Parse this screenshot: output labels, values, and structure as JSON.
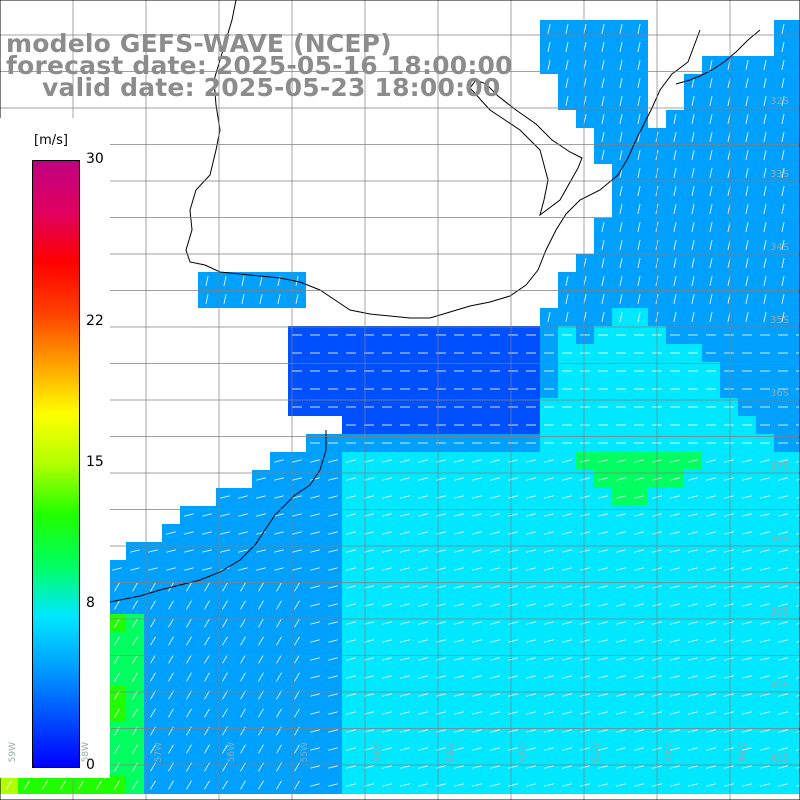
{
  "header": {
    "model": "modelo GEFS-WAVE (NCEP)",
    "forecast": "forecast date: 2025-05-16 18:00:00",
    "valid": "valid date: 2025-05-23 18:00:00"
  },
  "colorbar": {
    "unit": "[m/s]",
    "ticks": [
      {
        "label": "30",
        "value": 30
      },
      {
        "label": "22",
        "value": 22
      },
      {
        "label": "15",
        "value": 15
      },
      {
        "label": "8",
        "value": 8
      },
      {
        "label": "0",
        "value": 0
      }
    ],
    "stops": [
      "#0000ff",
      "#0050ff",
      "#00a0ff",
      "#00e8ff",
      "#00ff60",
      "#20ff00",
      "#b0ff00",
      "#ffff00",
      "#ffa000",
      "#ff4000",
      "#ff0000",
      "#e00060",
      "#c00080"
    ]
  },
  "map": {
    "lat_labels": [
      "32S",
      "33S",
      "34S",
      "35S",
      "36S",
      "37S",
      "38S",
      "39S",
      "40S",
      "41S"
    ],
    "lon_labels": [
      "59W",
      "58W",
      "57W",
      "56W",
      "55W",
      "54W",
      "53W",
      "52W",
      "51W",
      "50W",
      "49W"
    ],
    "land_color": "#ffffff",
    "grid_color": "#808080",
    "arrow_color": "#ffffff"
  }
}
